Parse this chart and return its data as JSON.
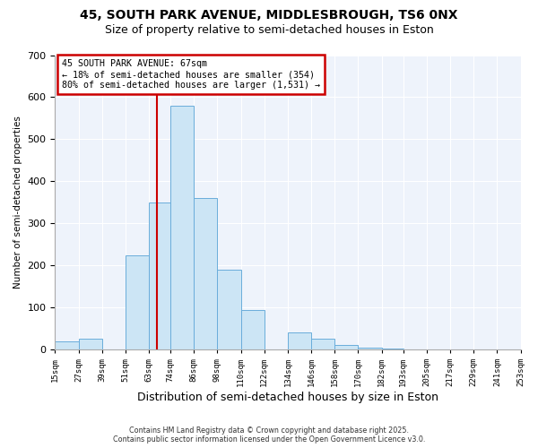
{
  "title": "45, SOUTH PARK AVENUE, MIDDLESBROUGH, TS6 0NX",
  "subtitle": "Size of property relative to semi-detached houses in Eston",
  "xlabel": "Distribution of semi-detached houses by size in Eston",
  "ylabel": "Number of semi-detached properties",
  "bin_edges": [
    15,
    27,
    39,
    51,
    63,
    74,
    86,
    98,
    110,
    122,
    134,
    146,
    158,
    170,
    182,
    193,
    205,
    217,
    229,
    241,
    253
  ],
  "bin_counts": [
    20,
    25,
    0,
    225,
    350,
    580,
    360,
    190,
    95,
    0,
    40,
    25,
    10,
    5,
    2,
    1,
    0,
    0,
    0,
    0
  ],
  "tick_labels": [
    "15sqm",
    "27sqm",
    "39sqm",
    "51sqm",
    "63sqm",
    "74sqm",
    "86sqm",
    "98sqm",
    "110sqm",
    "122sqm",
    "134sqm",
    "146sqm",
    "158sqm",
    "170sqm",
    "182sqm",
    "193sqm",
    "205sqm",
    "217sqm",
    "229sqm",
    "241sqm",
    "253sqm"
  ],
  "bar_color": "#cce5f5",
  "bar_edge_color": "#6aaddb",
  "property_line_x": 67,
  "property_line_color": "#cc0000",
  "annotation_title": "45 SOUTH PARK AVENUE: 67sqm",
  "annotation_line1": "← 18% of semi-detached houses are smaller (354)",
  "annotation_line2": "80% of semi-detached houses are larger (1,531) →",
  "annotation_box_color": "#cc0000",
  "ylim": [
    0,
    700
  ],
  "yticks": [
    0,
    100,
    200,
    300,
    400,
    500,
    600,
    700
  ],
  "footer_line1": "Contains HM Land Registry data © Crown copyright and database right 2025.",
  "footer_line2": "Contains public sector information licensed under the Open Government Licence v3.0.",
  "background_color": "#ffffff",
  "plot_background_color": "#eef3fb",
  "grid_color": "#ffffff",
  "title_fontsize": 10,
  "subtitle_fontsize": 9
}
